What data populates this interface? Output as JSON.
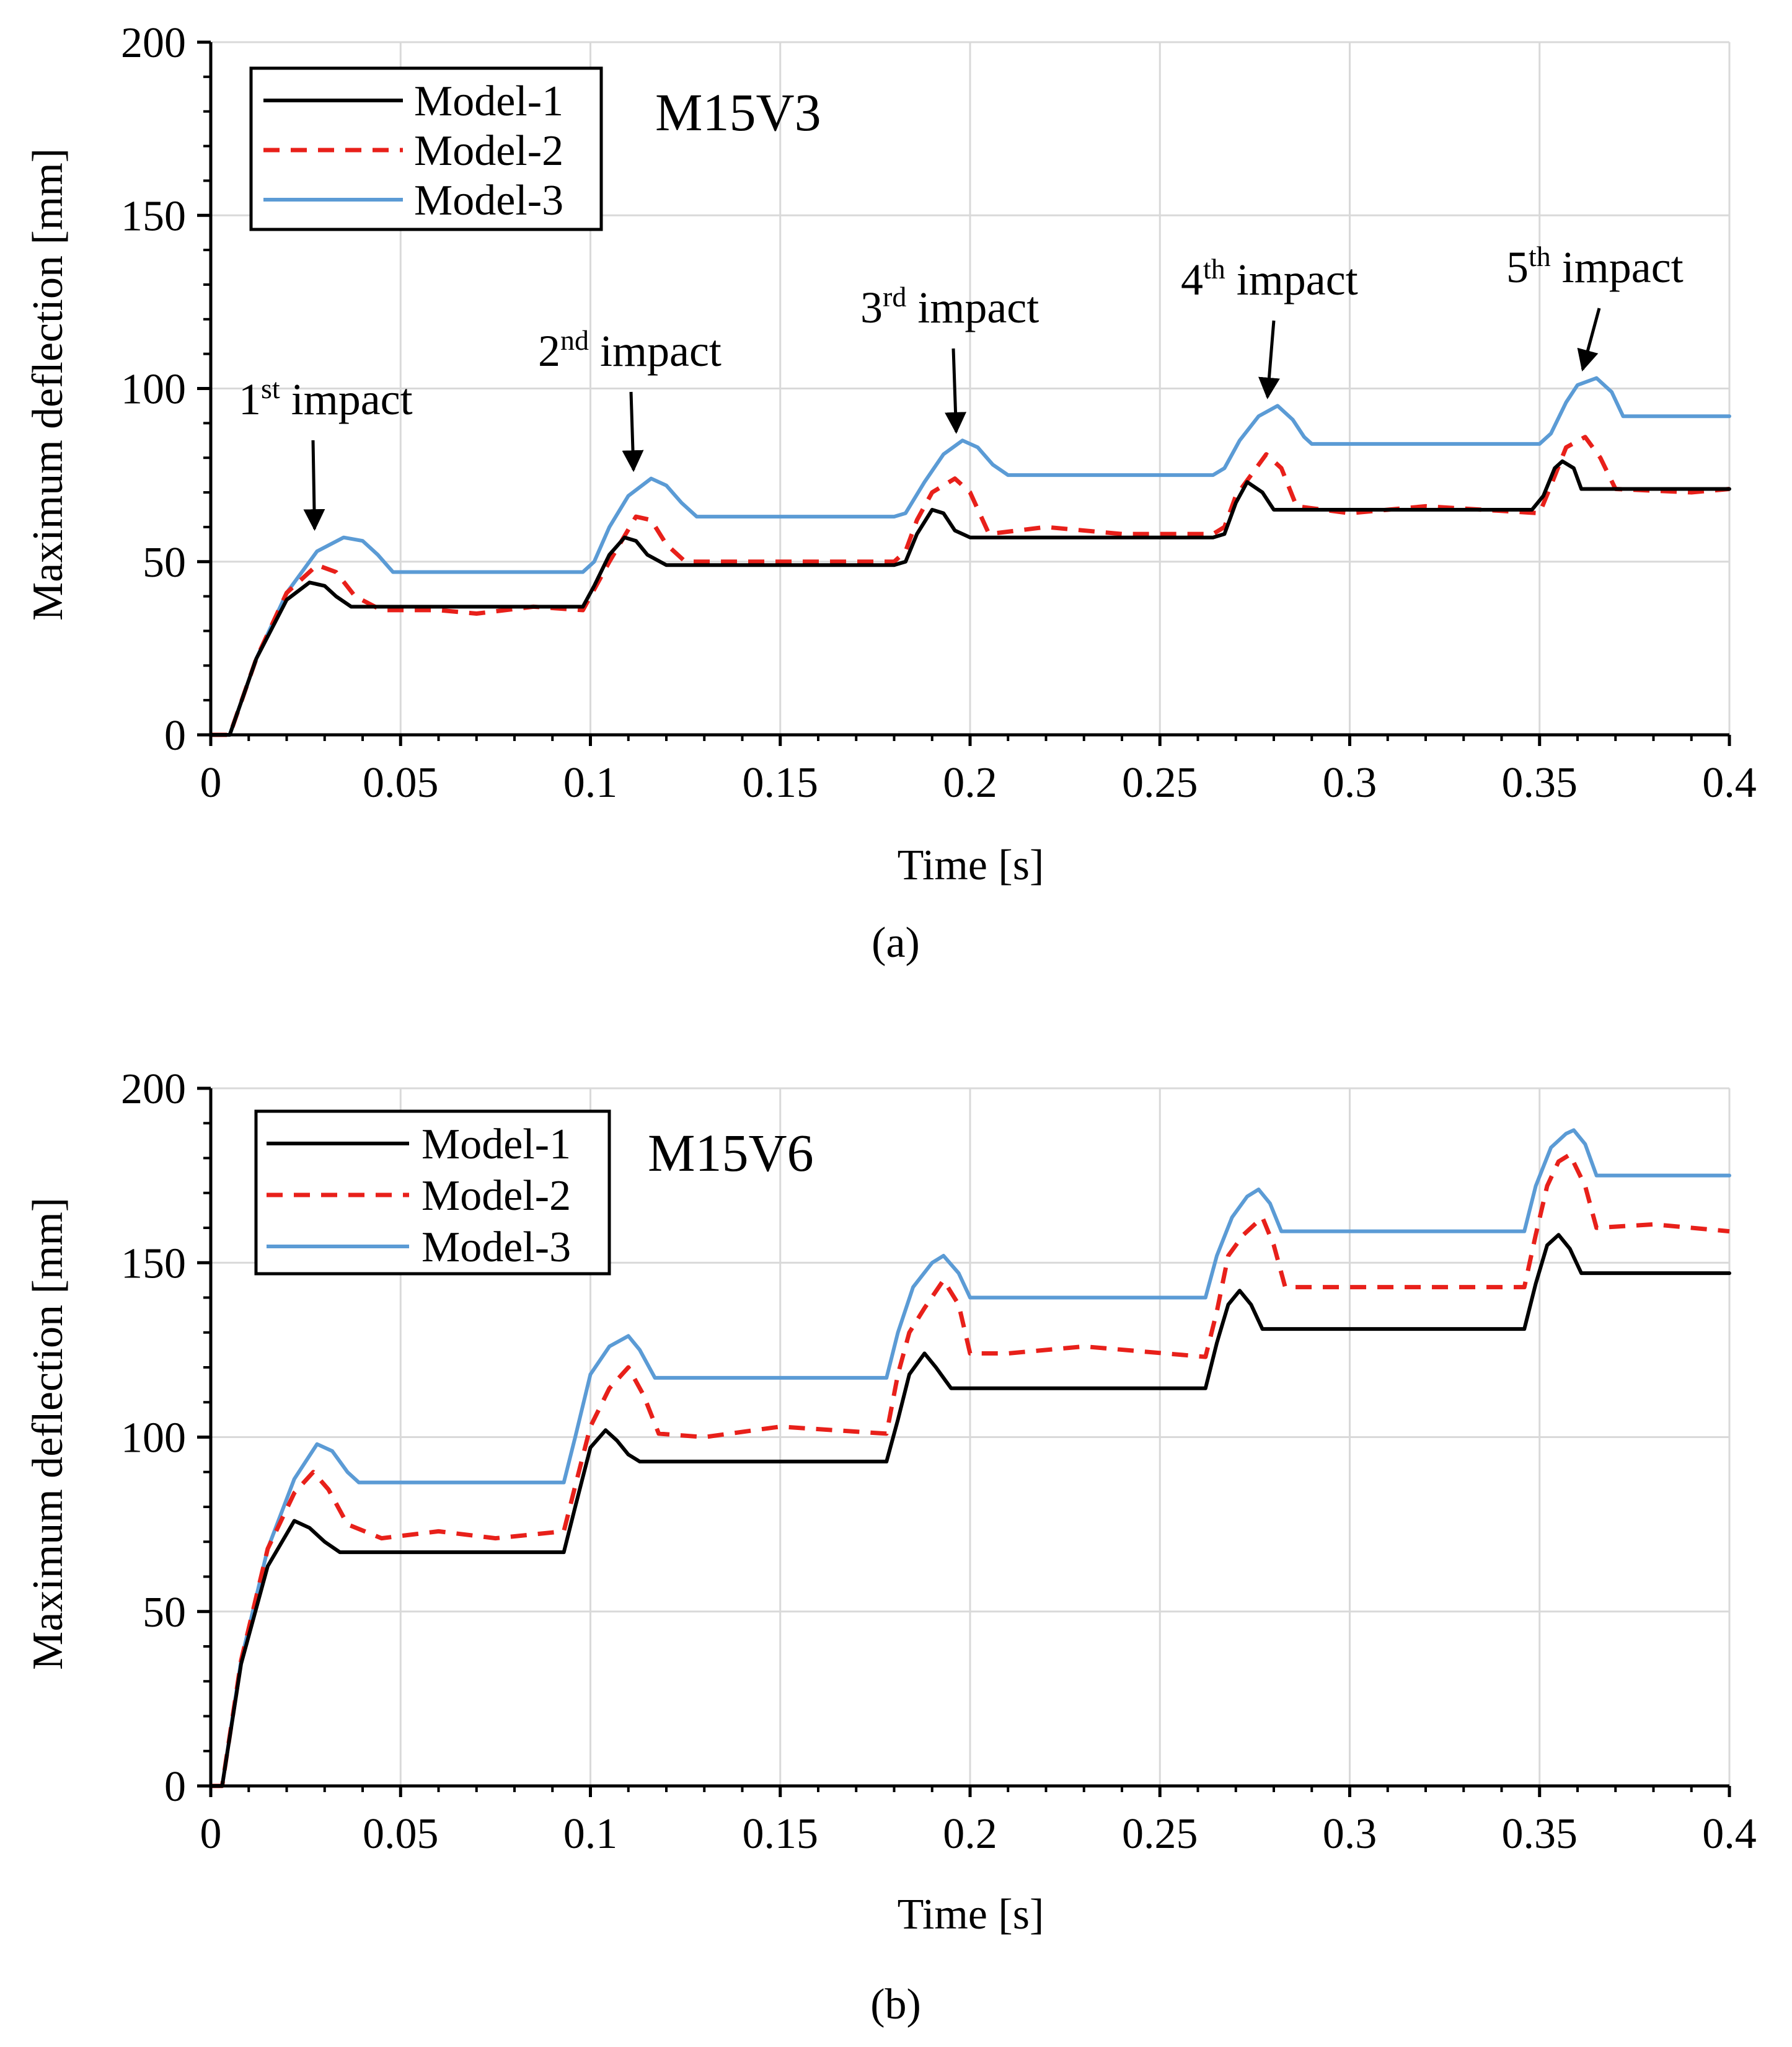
{
  "chart_data": [
    {
      "type": "line",
      "panel_label": "(a)",
      "title": "M15V3",
      "xlabel": "Time [s]",
      "ylabel": "Maximum deflection [mm]",
      "xlim": [
        0,
        0.4
      ],
      "ylim": [
        0,
        200
      ],
      "x_ticks": [
        "0",
        "0.05",
        "0.1",
        "0.15",
        "0.2",
        "0.25",
        "0.3",
        "0.35",
        "0.4"
      ],
      "y_ticks": [
        "0",
        "50",
        "100",
        "150",
        "200"
      ],
      "grid": true,
      "legend_position": "top-left",
      "annotations": [
        {
          "base": "1",
          "sup": "st",
          "rest": " impact",
          "target": [
            0.028,
            57
          ]
        },
        {
          "base": "2",
          "sup": "nd",
          "rest": " impact",
          "target": [
            0.112,
            74
          ]
        },
        {
          "base": "3",
          "sup": "rd",
          "rest": " impact",
          "target": [
            0.197,
            85
          ]
        },
        {
          "base": "4",
          "sup": "th",
          "rest": " impact",
          "target": [
            0.279,
            95
          ]
        },
        {
          "base": "5",
          "sup": "th",
          "rest": " impact",
          "target": [
            0.362,
            103
          ]
        }
      ],
      "series": [
        {
          "name": "Model-1",
          "color": "#000000",
          "dash": "solid",
          "x": [
            0,
            0.005,
            0.012,
            0.02,
            0.026,
            0.03,
            0.033,
            0.037,
            0.05,
            0.08,
            0.098,
            0.101,
            0.105,
            0.109,
            0.112,
            0.115,
            0.12,
            0.15,
            0.18,
            0.183,
            0.186,
            0.19,
            0.193,
            0.196,
            0.2,
            0.23,
            0.264,
            0.267,
            0.27,
            0.273,
            0.277,
            0.28,
            0.3,
            0.33,
            0.348,
            0.351,
            0.354,
            0.356,
            0.359,
            0.361,
            0.38,
            0.4
          ],
          "y": [
            0,
            0,
            22,
            39,
            44,
            43,
            40,
            37,
            37,
            37,
            37,
            43,
            52,
            57,
            56,
            52,
            49,
            49,
            49,
            50,
            58,
            65,
            64,
            59,
            57,
            57,
            57,
            58,
            67,
            73,
            70,
            65,
            65,
            65,
            65,
            69,
            77,
            79,
            77,
            71,
            71,
            71
          ]
        },
        {
          "name": "Model-2",
          "color": "#e8201a",
          "dash": "dashed",
          "x": [
            0,
            0.005,
            0.012,
            0.02,
            0.028,
            0.033,
            0.038,
            0.045,
            0.06,
            0.07,
            0.085,
            0.098,
            0.101,
            0.105,
            0.112,
            0.116,
            0.12,
            0.125,
            0.15,
            0.18,
            0.183,
            0.186,
            0.19,
            0.196,
            0.2,
            0.205,
            0.22,
            0.24,
            0.264,
            0.267,
            0.27,
            0.278,
            0.282,
            0.286,
            0.3,
            0.32,
            0.35,
            0.353,
            0.357,
            0.362,
            0.366,
            0.37,
            0.39,
            0.4
          ],
          "y": [
            0,
            0,
            22,
            41,
            49,
            47,
            40,
            36,
            36,
            35,
            37,
            36,
            42,
            50,
            63,
            62,
            55,
            50,
            50,
            50,
            53,
            62,
            70,
            74,
            70,
            58,
            60,
            58,
            58,
            60,
            69,
            81,
            77,
            66,
            64,
            66,
            64,
            72,
            83,
            86,
            80,
            71,
            70,
            71
          ]
        },
        {
          "name": "Model-3",
          "color": "#5b9bd5",
          "dash": "solid",
          "x": [
            0,
            0.005,
            0.012,
            0.02,
            0.028,
            0.035,
            0.04,
            0.044,
            0.048,
            0.098,
            0.101,
            0.105,
            0.11,
            0.116,
            0.12,
            0.124,
            0.128,
            0.18,
            0.183,
            0.188,
            0.193,
            0.198,
            0.202,
            0.206,
            0.21,
            0.264,
            0.267,
            0.271,
            0.276,
            0.281,
            0.285,
            0.288,
            0.29,
            0.35,
            0.353,
            0.357,
            0.36,
            0.365,
            0.369,
            0.372,
            0.4
          ],
          "y": [
            0,
            0,
            22,
            41,
            53,
            57,
            56,
            52,
            47,
            47,
            50,
            60,
            69,
            74,
            72,
            67,
            63,
            63,
            64,
            73,
            81,
            85,
            83,
            78,
            75,
            75,
            77,
            85,
            92,
            95,
            91,
            86,
            84,
            84,
            87,
            96,
            101,
            103,
            99,
            92,
            92
          ]
        }
      ]
    },
    {
      "type": "line",
      "panel_label": "(b)",
      "title": "M15V6",
      "xlabel": "Time [s]",
      "ylabel": "Maximum deflection [mm]",
      "xlim": [
        0,
        0.4
      ],
      "ylim": [
        0,
        200
      ],
      "x_ticks": [
        "0",
        "0.05",
        "0.1",
        "0.15",
        "0.2",
        "0.25",
        "0.3",
        "0.35",
        "0.4"
      ],
      "y_ticks": [
        "0",
        "50",
        "100",
        "150",
        "200"
      ],
      "grid": true,
      "legend_position": "top-left",
      "annotations": [],
      "series": [
        {
          "name": "Model-1",
          "color": "#000000",
          "dash": "solid",
          "x": [
            0,
            0.003,
            0.008,
            0.015,
            0.022,
            0.026,
            0.03,
            0.034,
            0.06,
            0.093,
            0.096,
            0.1,
            0.104,
            0.107,
            0.11,
            0.113,
            0.15,
            0.178,
            0.181,
            0.184,
            0.188,
            0.191,
            0.195,
            0.23,
            0.262,
            0.265,
            0.268,
            0.271,
            0.274,
            0.277,
            0.3,
            0.346,
            0.349,
            0.352,
            0.355,
            0.358,
            0.361,
            0.38,
            0.4
          ],
          "y": [
            0,
            0,
            35,
            63,
            76,
            74,
            70,
            67,
            67,
            67,
            80,
            97,
            102,
            99,
            95,
            93,
            93,
            93,
            105,
            118,
            124,
            120,
            114,
            114,
            114,
            127,
            138,
            142,
            138,
            131,
            131,
            131,
            144,
            155,
            158,
            154,
            147,
            147,
            147
          ]
        },
        {
          "name": "Model-2",
          "color": "#e8201a",
          "dash": "dashed",
          "x": [
            0,
            0.003,
            0.008,
            0.015,
            0.022,
            0.027,
            0.031,
            0.036,
            0.045,
            0.06,
            0.075,
            0.093,
            0.096,
            0.1,
            0.105,
            0.11,
            0.114,
            0.118,
            0.13,
            0.15,
            0.178,
            0.181,
            0.184,
            0.188,
            0.193,
            0.197,
            0.2,
            0.21,
            0.23,
            0.262,
            0.265,
            0.268,
            0.272,
            0.277,
            0.28,
            0.283,
            0.3,
            0.346,
            0.349,
            0.352,
            0.355,
            0.358,
            0.362,
            0.365,
            0.38,
            0.4
          ],
          "y": [
            0,
            0,
            36,
            68,
            84,
            90,
            85,
            75,
            71,
            73,
            71,
            73,
            86,
            103,
            114,
            120,
            112,
            101,
            100,
            103,
            101,
            118,
            130,
            137,
            145,
            138,
            124,
            124,
            126,
            123,
            136,
            152,
            158,
            163,
            155,
            143,
            143,
            143,
            158,
            172,
            179,
            181,
            172,
            160,
            161,
            159
          ]
        },
        {
          "name": "Model-3",
          "color": "#5b9bd5",
          "dash": "solid",
          "x": [
            0,
            0.003,
            0.008,
            0.015,
            0.022,
            0.028,
            0.032,
            0.036,
            0.039,
            0.093,
            0.096,
            0.1,
            0.105,
            0.11,
            0.113,
            0.117,
            0.178,
            0.181,
            0.185,
            0.19,
            0.193,
            0.197,
            0.2,
            0.262,
            0.265,
            0.269,
            0.273,
            0.276,
            0.279,
            0.282,
            0.346,
            0.349,
            0.353,
            0.357,
            0.359,
            0.362,
            0.365,
            0.4
          ],
          "y": [
            0,
            0,
            36,
            68,
            88,
            98,
            96,
            90,
            87,
            87,
            100,
            118,
            126,
            129,
            125,
            117,
            117,
            130,
            143,
            150,
            152,
            147,
            140,
            140,
            152,
            163,
            169,
            171,
            167,
            159,
            159,
            172,
            183,
            187,
            188,
            184,
            175,
            175
          ]
        }
      ]
    }
  ]
}
